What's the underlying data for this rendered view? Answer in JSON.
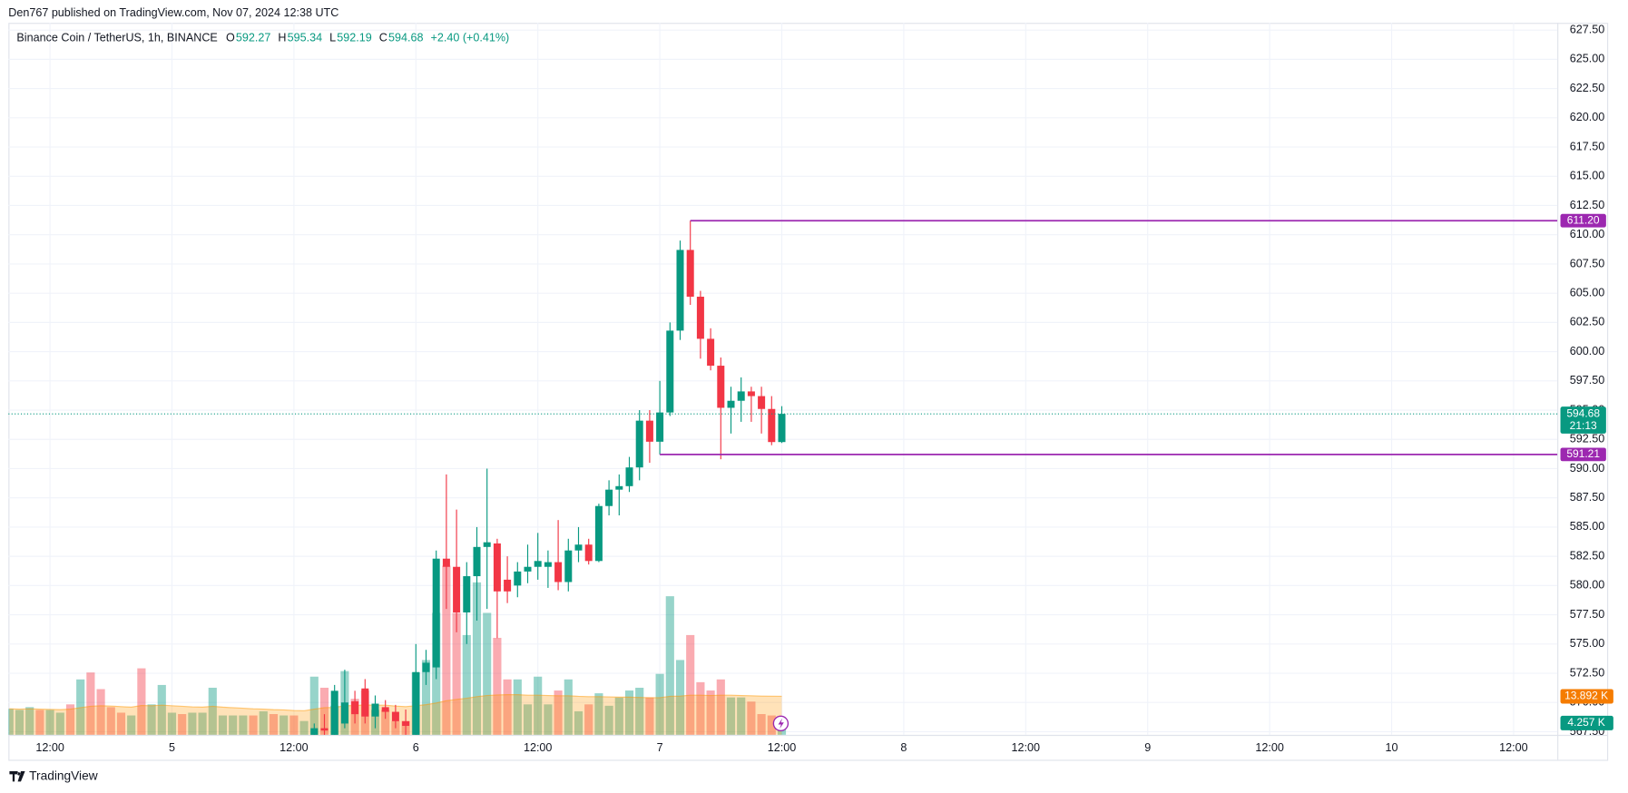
{
  "header": {
    "published": "Den767 published on TradingView.com, Nov 07, 2024 12:38 UTC",
    "footer": "TradingView"
  },
  "chart_data": {
    "type": "candlestick",
    "title": "Binance Coin / TetherUS, 1h, BINANCE",
    "ohlc_legend": [
      {
        "label": "O",
        "value": 592.27
      },
      {
        "label": "H",
        "value": 595.34
      },
      {
        "label": "L",
        "value": 592.19
      },
      {
        "label": "C",
        "value": 594.68
      }
    ],
    "change": {
      "value": 2.4,
      "label": "+2.40 (+0.41%)"
    },
    "up_color": "#089981",
    "down_color": "#f23645",
    "candles": {
      "x": [
        26,
        27,
        28,
        29,
        30,
        31,
        32,
        33,
        34,
        35,
        36,
        37,
        38,
        39,
        40,
        41,
        42,
        43,
        44,
        45,
        46,
        47,
        48,
        49,
        50,
        51,
        52,
        53,
        54,
        55,
        56,
        57,
        58,
        59,
        60,
        61,
        62,
        63,
        64,
        65,
        66,
        67,
        68,
        69,
        70,
        71,
        72
      ],
      "open": [
        566.8,
        567.8,
        566.5,
        568.2,
        570.1,
        571.2,
        568.8,
        569.6,
        569.2,
        568.4,
        567.0,
        572.6,
        573.0,
        582.3,
        581.6,
        577.7,
        580.8,
        583.3,
        583.6,
        580.5,
        580.0,
        581.2,
        581.6,
        581.6,
        582.0,
        580.3,
        583.0,
        583.5,
        582.1,
        586.8,
        588.2,
        588.5,
        590.1,
        594.1,
        592.3,
        594.8,
        601.8,
        608.7,
        604.7,
        601.1,
        598.8,
        595.2,
        595.8,
        596.6,
        596.2,
        595.1,
        592.27
      ],
      "high": [
        568.2,
        569.0,
        571.5,
        572.8,
        571.0,
        572.0,
        570.6,
        570.2,
        569.8,
        569.4,
        575.0,
        574.5,
        583.0,
        589.5,
        586.5,
        582.0,
        585.0,
        590.0,
        584.0,
        582.5,
        582.0,
        583.5,
        584.5,
        583.0,
        585.6,
        584.0,
        585.0,
        584.0,
        587.0,
        589.0,
        589.5,
        591.0,
        595.0,
        595.0,
        597.5,
        602.5,
        609.5,
        611.2,
        605.2,
        602.0,
        599.5,
        597.0,
        597.8,
        597.0,
        597.0,
        596.2,
        595.34
      ],
      "low": [
        566.5,
        566.5,
        566.0,
        567.8,
        568.2,
        568.2,
        567.8,
        568.6,
        567.8,
        567.0,
        566.0,
        571.5,
        572.0,
        578.0,
        576.0,
        575.0,
        577.0,
        578.0,
        575.5,
        578.5,
        579.0,
        580.2,
        580.5,
        579.8,
        579.6,
        579.5,
        582.0,
        581.8,
        582.0,
        586.0,
        586.0,
        588.0,
        589.0,
        590.5,
        591.21,
        594.5,
        601.0,
        604.0,
        599.4,
        598.4,
        590.8,
        593.0,
        594.0,
        594.0,
        593.0,
        592.0,
        592.19
      ],
      "close": [
        567.8,
        567.6,
        571.0,
        570.0,
        569.0,
        568.8,
        569.9,
        569.2,
        568.4,
        568.0,
        572.6,
        573.4,
        582.3,
        581.6,
        577.7,
        580.8,
        583.3,
        583.7,
        579.5,
        579.5,
        581.2,
        581.6,
        582.1,
        582.0,
        580.3,
        583.0,
        583.5,
        582.1,
        586.8,
        588.2,
        588.5,
        590.1,
        594.1,
        592.3,
        594.8,
        601.8,
        608.7,
        604.7,
        601.1,
        598.8,
        595.2,
        595.8,
        596.6,
        596.2,
        595.1,
        592.27,
        594.68
      ]
    },
    "volume": {
      "x": [
        -4,
        -3,
        -2,
        -1,
        0,
        1,
        2,
        3,
        4,
        5,
        6,
        7,
        8,
        9,
        10,
        11,
        12,
        13,
        14,
        15,
        16,
        17,
        18,
        19,
        20,
        21,
        22,
        23,
        24,
        25,
        26,
        27,
        28,
        29,
        30,
        31,
        32,
        33,
        34,
        35,
        36,
        37,
        38,
        39,
        40,
        41,
        42,
        43,
        44,
        45,
        46,
        47,
        48,
        49,
        50,
        51,
        52,
        53,
        54,
        55,
        56,
        57,
        58,
        59,
        60,
        61,
        62,
        63,
        64,
        65,
        66,
        67,
        68,
        69,
        70,
        71,
        72
      ],
      "values": [
        9.4,
        9,
        10,
        9,
        9,
        8,
        11,
        20,
        22.5,
        16.5,
        10,
        8,
        7,
        24,
        11,
        18,
        8,
        7.5,
        8,
        8,
        17,
        7,
        7,
        7,
        7,
        8.5,
        7.5,
        7,
        7,
        5,
        21,
        17,
        10.5,
        23,
        13,
        16,
        9,
        9,
        5,
        5,
        22.5,
        27,
        44,
        61,
        44,
        36,
        55,
        44,
        35,
        20,
        20,
        11,
        21,
        11,
        16,
        20,
        8.5,
        11,
        15,
        10.5,
        13.5,
        16,
        17,
        13.5,
        22,
        50,
        27,
        36,
        19,
        16,
        20,
        13.5,
        13.5,
        12,
        7.5,
        7,
        4.257
      ],
      "up": [
        true,
        true,
        true,
        false,
        true,
        true,
        false,
        true,
        false,
        false,
        false,
        false,
        true,
        false,
        true,
        true,
        true,
        false,
        true,
        true,
        true,
        true,
        true,
        true,
        false,
        true,
        false,
        true,
        false,
        true,
        true,
        false,
        true,
        true,
        false,
        false,
        true,
        false,
        false,
        false,
        true,
        true,
        true,
        false,
        false,
        true,
        true,
        true,
        false,
        false,
        true,
        true,
        true,
        true,
        false,
        true,
        true,
        false,
        true,
        true,
        true,
        true,
        true,
        false,
        true,
        true,
        true,
        false,
        false,
        false,
        false,
        true,
        true,
        false,
        false,
        false,
        true
      ],
      "ma": [
        9.4,
        9.3,
        9.4,
        9.3,
        9.2,
        9.1,
        9.3,
        9.8,
        10.3,
        10.5,
        10.4,
        10.2,
        10.0,
        10.6,
        10.5,
        10.7,
        10.5,
        10.3,
        10.1,
        10.0,
        10.3,
        10.0,
        9.8,
        9.6,
        9.4,
        9.3,
        9.1,
        9.0,
        8.8,
        8.7,
        9.3,
        9.8,
        9.9,
        10.5,
        10.6,
        10.8,
        10.7,
        10.7,
        10.4,
        10.2,
        10.5,
        10.9,
        11.5,
        12.3,
        12.8,
        13.2,
        13.8,
        14.2,
        14.4,
        14.5,
        14.5,
        14.3,
        14.3,
        14.2,
        14.1,
        14.1,
        13.9,
        13.8,
        13.8,
        13.7,
        13.6,
        13.6,
        13.5,
        13.4,
        13.4,
        13.9,
        14.0,
        14.3,
        14.3,
        14.2,
        14.3,
        14.3,
        14.2,
        14.1,
        14.0,
        13.95,
        13.892
      ],
      "ma_color": "#ff9800",
      "ylim": [
        0,
        70
      ],
      "tags": [
        {
          "value": 13.892,
          "label": "13.892 K",
          "color": "#f57c00"
        },
        {
          "value": 4.257,
          "label": "4.257 K",
          "color": "#089981"
        }
      ]
    },
    "levels": [
      {
        "value": 611.2,
        "label": "611.20",
        "x": 63,
        "color": "#9c27b0"
      },
      {
        "value": 591.21,
        "label": "591.21",
        "x": 60,
        "color": "#9c27b0"
      }
    ],
    "last_price": {
      "value": 594.68,
      "label": "594.68",
      "countdown": "21:13",
      "color": "#089981"
    },
    "xlim": [
      -4.09,
      148.3
    ],
    "xticks": [
      {
        "value": 0,
        "label": "12:00"
      },
      {
        "value": 12,
        "label": "5"
      },
      {
        "value": 24,
        "label": "12:00"
      },
      {
        "value": 36,
        "label": "6"
      },
      {
        "value": 48,
        "label": "12:00"
      },
      {
        "value": 60,
        "label": "7"
      },
      {
        "value": 72,
        "label": "12:00"
      },
      {
        "value": 84,
        "label": "8"
      },
      {
        "value": 96,
        "label": "12:00"
      },
      {
        "value": 108,
        "label": "9"
      },
      {
        "value": 120,
        "label": "12:00"
      },
      {
        "value": 132,
        "label": "10"
      },
      {
        "value": 144,
        "label": "12:00"
      }
    ],
    "ylim": [
      567.23,
      628.12
    ],
    "yticks": [
      {
        "value": 567.5,
        "label": "567.50"
      },
      {
        "value": 570,
        "label": "570.00"
      },
      {
        "value": 572.5,
        "label": "572.50"
      },
      {
        "value": 575,
        "label": "575.00"
      },
      {
        "value": 577.5,
        "label": "577.50"
      },
      {
        "value": 580,
        "label": "580.00"
      },
      {
        "value": 582.5,
        "label": "582.50"
      },
      {
        "value": 585,
        "label": "585.00"
      },
      {
        "value": 587.5,
        "label": "587.50"
      },
      {
        "value": 590,
        "label": "590.00"
      },
      {
        "value": 592.5,
        "label": "592.50"
      },
      {
        "value": 595,
        "label": "595.00"
      },
      {
        "value": 597.5,
        "label": "597.50"
      },
      {
        "value": 600,
        "label": "600.00"
      },
      {
        "value": 602.5,
        "label": "602.50"
      },
      {
        "value": 605,
        "label": "605.00"
      },
      {
        "value": 607.5,
        "label": "607.50"
      },
      {
        "value": 610,
        "label": "610.00"
      },
      {
        "value": 612.5,
        "label": "612.50"
      },
      {
        "value": 615,
        "label": "615.00"
      },
      {
        "value": 617.5,
        "label": "617.50"
      },
      {
        "value": 620,
        "label": "620.00"
      },
      {
        "value": 622.5,
        "label": "622.50"
      },
      {
        "value": 625,
        "label": "625.00"
      },
      {
        "value": 627.5,
        "label": "627.50"
      }
    ],
    "grid": true
  }
}
